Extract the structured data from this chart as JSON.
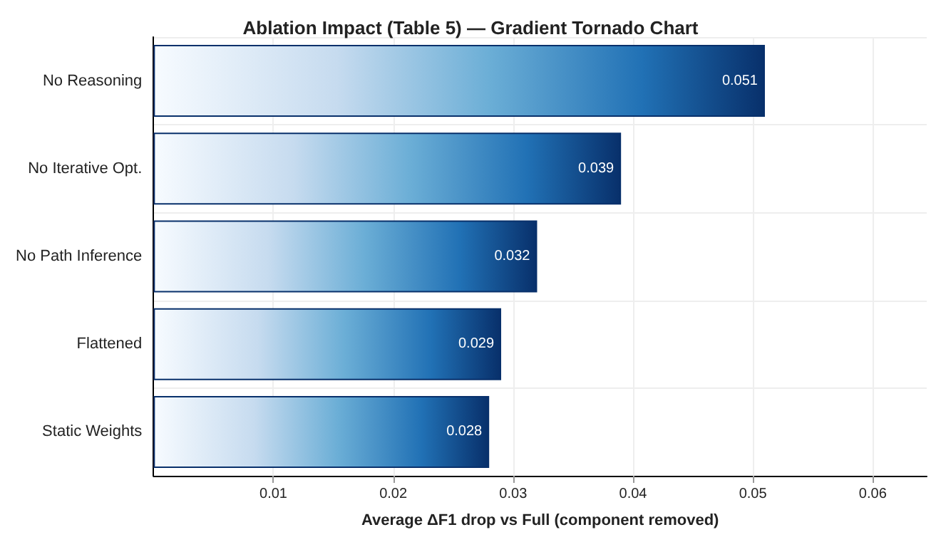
{
  "chart_data": {
    "type": "bar",
    "orientation": "horizontal",
    "title": "Ablation Impact (Table 5) — Gradient Tornado Chart",
    "xlabel": "Average ΔF1 drop vs Full (component removed)",
    "categories": [
      "No Reasoning",
      "No Iterative Opt.",
      "No Path Inference",
      "Flattened",
      "Static Weights"
    ],
    "values": [
      0.051,
      0.039,
      0.032,
      0.029,
      0.028
    ],
    "color": "#08306b",
    "data_labels": true,
    "xlim": [
      0,
      0.0645
    ],
    "xticks": [
      0.01,
      0.02,
      0.03,
      0.04,
      0.05,
      0.06
    ],
    "grid": true
  }
}
